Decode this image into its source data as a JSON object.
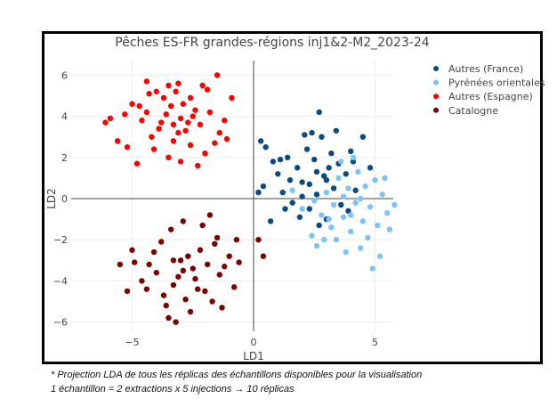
{
  "chart_data": {
    "type": "scatter",
    "title": "Pêches ES-FR grandes-régions inj1&2-M2_2023-24",
    "xlabel": "LD1",
    "ylabel": "LD2",
    "xlim": [
      -6.5,
      5.8
    ],
    "ylim": [
      -6.5,
      6.5
    ],
    "xticks": [
      {
        "v": -5,
        "label": "−5"
      },
      {
        "v": 0,
        "label": "0"
      },
      {
        "v": 5,
        "label": "5"
      }
    ],
    "yticks": [
      {
        "v": 6,
        "label": "6"
      },
      {
        "v": 4,
        "label": "4"
      },
      {
        "v": 2,
        "label": "2"
      },
      {
        "v": 0,
        "label": "0"
      },
      {
        "v": -2,
        "label": "−2"
      },
      {
        "v": -4,
        "label": "−4"
      },
      {
        "v": -6,
        "label": "−6"
      }
    ],
    "grid": true,
    "legend_position": "top-right",
    "series": [
      {
        "name": "Autres (France)",
        "color": "#0b4a82",
        "points": [
          [
            0.3,
            2.8
          ],
          [
            0.5,
            2.5
          ],
          [
            0.8,
            1.8
          ],
          [
            0.4,
            0.6
          ],
          [
            0.2,
            0.3
          ],
          [
            1.0,
            1.2
          ],
          [
            1.2,
            0.3
          ],
          [
            1.4,
            2.0
          ],
          [
            1.6,
            -0.2
          ],
          [
            1.8,
            1.5
          ],
          [
            2.0,
            0.8
          ],
          [
            2.2,
            2.4
          ],
          [
            2.3,
            -0.5
          ],
          [
            2.5,
            1.9
          ],
          [
            2.6,
            0.2
          ],
          [
            2.8,
            3.0
          ],
          [
            2.9,
            1.1
          ],
          [
            3.0,
            -1.0
          ],
          [
            3.2,
            2.2
          ],
          [
            3.3,
            0.5
          ],
          [
            3.5,
            1.7
          ],
          [
            3.6,
            -0.3
          ],
          [
            3.8,
            1.2
          ],
          [
            4.0,
            2.3
          ],
          [
            4.2,
            0.4
          ],
          [
            4.5,
            3.0
          ],
          [
            4.8,
            1.5
          ],
          [
            2.7,
            4.2
          ],
          [
            2.1,
            3.1
          ],
          [
            2.4,
            3.2
          ],
          [
            3.4,
            3.3
          ],
          [
            1.5,
            0.9
          ],
          [
            1.9,
            -0.9
          ],
          [
            2.7,
            -1.3
          ],
          [
            3.1,
            1.5
          ],
          [
            2.3,
            0.7
          ],
          [
            1.1,
            1.9
          ],
          [
            0.7,
            -1.1
          ],
          [
            3.9,
            -0.6
          ],
          [
            4.1,
            1.8
          ],
          [
            1.3,
            -0.5
          ],
          [
            2.0,
            0.1
          ],
          [
            2.6,
            1.3
          ],
          [
            3.0,
            0.9
          ]
        ]
      },
      {
        "name": "Pyrénées orientales",
        "color": "#7cc4f5",
        "points": [
          [
            1.6,
            0.4
          ],
          [
            2.0,
            -0.5
          ],
          [
            2.4,
            -1.8
          ],
          [
            2.6,
            -2.3
          ],
          [
            2.8,
            -0.8
          ],
          [
            3.0,
            0.3
          ],
          [
            3.2,
            -1.4
          ],
          [
            3.4,
            -2.0
          ],
          [
            3.5,
            1.0
          ],
          [
            3.7,
            -0.9
          ],
          [
            3.9,
            0.5
          ],
          [
            4.0,
            -1.6
          ],
          [
            4.2,
            -0.2
          ],
          [
            4.3,
            1.3
          ],
          [
            4.5,
            -1.1
          ],
          [
            4.6,
            0.6
          ],
          [
            4.8,
            -0.4
          ],
          [
            5.0,
            0.9
          ],
          [
            5.1,
            -1.3
          ],
          [
            5.3,
            0.2
          ],
          [
            5.5,
            -0.7
          ],
          [
            5.8,
            -0.3
          ],
          [
            5.2,
            -2.8
          ],
          [
            4.9,
            -3.4
          ],
          [
            4.4,
            -2.4
          ],
          [
            3.8,
            -2.6
          ],
          [
            3.3,
            -0.3
          ],
          [
            2.9,
            -2.0
          ],
          [
            4.1,
            2.0
          ],
          [
            3.6,
            1.8
          ],
          [
            5.4,
            1.0
          ],
          [
            4.7,
            -1.9
          ],
          [
            3.1,
            -1.0
          ],
          [
            2.5,
            -0.1
          ],
          [
            4.4,
            0.0
          ],
          [
            5.6,
            -1.5
          ],
          [
            3.7,
            0.1
          ],
          [
            4.0,
            -0.8
          ]
        ]
      },
      {
        "name": "Autres (Espagne)",
        "color": "#ff0000",
        "points": [
          [
            -6.1,
            3.7
          ],
          [
            -5.9,
            3.9
          ],
          [
            -5.3,
            4.1
          ],
          [
            -5.0,
            4.6
          ],
          [
            -4.7,
            4.5
          ],
          [
            -4.4,
            5.7
          ],
          [
            -4.3,
            5.1
          ],
          [
            -4.0,
            5.2
          ],
          [
            -3.7,
            4.9
          ],
          [
            -3.5,
            5.5
          ],
          [
            -3.2,
            5.2
          ],
          [
            -3.1,
            5.6
          ],
          [
            -2.6,
            4.9
          ],
          [
            -2.1,
            5.5
          ],
          [
            -1.9,
            5.3
          ],
          [
            -1.5,
            6.0
          ],
          [
            -0.9,
            4.9
          ],
          [
            -1.2,
            3.8
          ],
          [
            -1.4,
            3.2
          ],
          [
            -1.8,
            4.2
          ],
          [
            -2.2,
            3.6
          ],
          [
            -2.5,
            4.0
          ],
          [
            -2.8,
            3.3
          ],
          [
            -3.0,
            3.9
          ],
          [
            -3.3,
            3.6
          ],
          [
            -3.6,
            4.1
          ],
          [
            -3.9,
            3.4
          ],
          [
            -4.2,
            3.0
          ],
          [
            -4.6,
            3.8
          ],
          [
            -5.6,
            2.8
          ],
          [
            -5.2,
            2.5
          ],
          [
            -4.8,
            1.7
          ],
          [
            -4.1,
            2.4
          ],
          [
            -3.5,
            2.0
          ],
          [
            -3.0,
            1.8
          ],
          [
            -2.6,
            2.6
          ],
          [
            -2.0,
            2.2
          ],
          [
            -1.6,
            2.7
          ],
          [
            -1.1,
            2.9
          ],
          [
            -3.4,
            4.5
          ],
          [
            -2.9,
            4.6
          ],
          [
            -2.4,
            4.3
          ],
          [
            -3.8,
            3.7
          ],
          [
            -3.1,
            3.2
          ],
          [
            -2.7,
            3.7
          ],
          [
            -3.3,
            2.8
          ],
          [
            -2.3,
            1.6
          ],
          [
            -4.4,
            4.2
          ]
        ]
      },
      {
        "name": "Catalogne",
        "color": "#7b0000",
        "points": [
          [
            -5.2,
            -4.5
          ],
          [
            -5.0,
            -2.5
          ],
          [
            -4.9,
            -3.1
          ],
          [
            -4.6,
            -4.0
          ],
          [
            -4.3,
            -3.2
          ],
          [
            -4.0,
            -3.6
          ],
          [
            -3.8,
            -2.1
          ],
          [
            -3.6,
            -5.2
          ],
          [
            -3.5,
            -5.8
          ],
          [
            -3.3,
            -4.2
          ],
          [
            -3.1,
            -3.8
          ],
          [
            -3.0,
            -3.0
          ],
          [
            -2.8,
            -4.9
          ],
          [
            -2.7,
            -2.8
          ],
          [
            -2.5,
            -3.4
          ],
          [
            -2.4,
            -3.9
          ],
          [
            -2.2,
            -2.5
          ],
          [
            -2.0,
            -4.5
          ],
          [
            -1.9,
            -3.2
          ],
          [
            -1.7,
            -5.0
          ],
          [
            -1.5,
            -1.9
          ],
          [
            -1.4,
            -3.7
          ],
          [
            -1.2,
            -3.3
          ],
          [
            -1.0,
            -2.8
          ],
          [
            -0.8,
            -4.3
          ],
          [
            -0.6,
            -3.1
          ],
          [
            -1.6,
            -2.2
          ],
          [
            -2.1,
            -1.3
          ],
          [
            -1.8,
            -0.8
          ],
          [
            -2.9,
            -1.1
          ],
          [
            -3.4,
            -1.5
          ],
          [
            -4.1,
            -2.6
          ],
          [
            -5.5,
            -3.2
          ],
          [
            -3.2,
            -6.0
          ],
          [
            -2.6,
            -5.5
          ],
          [
            -2.3,
            -4.4
          ],
          [
            -3.7,
            -4.7
          ],
          [
            -4.4,
            -4.4
          ],
          [
            -1.3,
            -5.3
          ],
          [
            -0.7,
            -2.0
          ],
          [
            -2.9,
            -3.5
          ],
          [
            -3.3,
            -3.0
          ],
          [
            0.2,
            -2.0
          ],
          [
            0.4,
            -2.8
          ]
        ]
      }
    ]
  },
  "captions": {
    "line1": "* Projection LDA de tous les réplicas des échantillons disponibles pour la visualisation",
    "line2": "1 échantillon = 2 extractions x 5 injections → 10 réplicas"
  }
}
